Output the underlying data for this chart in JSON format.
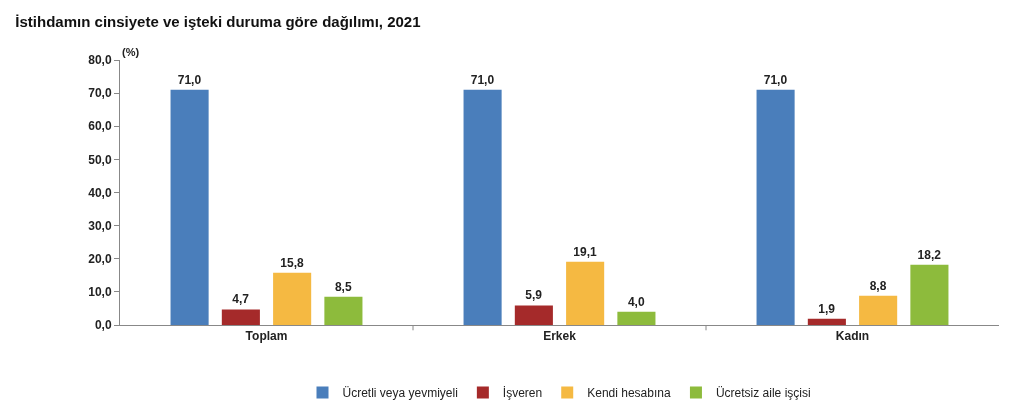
{
  "chart_data": {
    "type": "bar",
    "title": "İstihdamın cinsiyete ve işteki duruma göre dağılımı, 2021",
    "ylabel": "(%)",
    "categories": [
      "Toplam",
      "Erkek",
      "Kadın"
    ],
    "series": [
      {
        "name": "Ücretli veya yevmiyeli",
        "color": "#4a7ebb",
        "values": [
          71.0,
          71.0,
          71.0
        ],
        "value_labels": [
          "71,0",
          "71,0",
          "71,0"
        ]
      },
      {
        "name": "İşveren",
        "color": "#a52a2a",
        "values": [
          4.7,
          5.9,
          1.9
        ],
        "value_labels": [
          "4,7",
          "5,9",
          "1,9"
        ]
      },
      {
        "name": "Kendi hesabına",
        "color": "#f5b942",
        "values": [
          15.8,
          19.1,
          8.8
        ],
        "value_labels": [
          "15,8",
          "19,1",
          "8,8"
        ]
      },
      {
        "name": "Ücretsiz aile işçisi",
        "color": "#8dbb3c",
        "values": [
          8.5,
          4.0,
          18.2
        ],
        "value_labels": [
          "8,5",
          "4,0",
          "18,2"
        ]
      }
    ],
    "ylim": [
      0,
      80
    ],
    "yticks": [
      {
        "value": 0,
        "label": "0,0"
      },
      {
        "value": 10,
        "label": "10,0"
      },
      {
        "value": 20,
        "label": "20,0"
      },
      {
        "value": 30,
        "label": "30,0"
      },
      {
        "value": 40,
        "label": "40,0"
      },
      {
        "value": 50,
        "label": "50,0"
      },
      {
        "value": 60,
        "label": "60,0"
      },
      {
        "value": 70,
        "label": "70,0"
      },
      {
        "value": 80,
        "label": "80,0"
      }
    ],
    "grid": false,
    "legend": "bottom"
  }
}
